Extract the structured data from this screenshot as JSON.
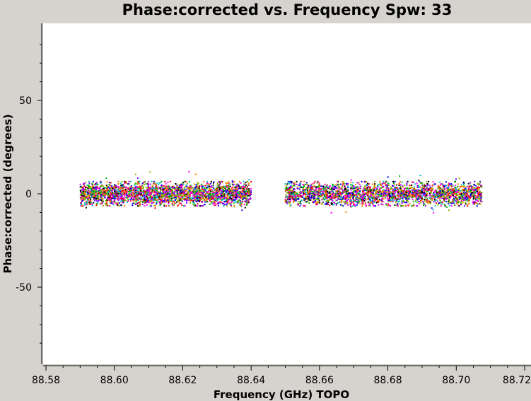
{
  "chart_data": {
    "type": "scatter",
    "title": "Phase:corrected vs. Frequency Spw: 33",
    "xlabel": "Frequency (GHz) TOPO",
    "ylabel": "Phase:corrected (degrees)",
    "xlim": [
      88.58,
      88.72
    ],
    "ylim": [
      -90,
      90
    ],
    "x_ticks": [
      88.58,
      88.6,
      88.62,
      88.64,
      88.66,
      88.68,
      88.7,
      88.72
    ],
    "x_tick_labels": [
      "88.58",
      "88.60",
      "88.62",
      "88.64",
      "88.66",
      "88.68",
      "88.70",
      "88.72"
    ],
    "y_ticks": [
      -50,
      0,
      50
    ],
    "y_tick_labels": [
      "-50",
      "0",
      "50"
    ],
    "grid": false,
    "series": [
      {
        "x_range": [
          88.59,
          88.64
        ],
        "y_center": 0,
        "y_spread": 5,
        "y_extremes": [
          -10,
          12
        ]
      },
      {
        "x_range": [
          88.65,
          88.7075
        ],
        "y_center": 0,
        "y_spread": 5,
        "y_extremes": [
          -11,
          10
        ]
      }
    ],
    "point_colors": [
      "#000000",
      "#ff0000",
      "#00b000",
      "#0000ff",
      "#ff00ff",
      "#00c0c0",
      "#ff8000",
      "#8000ff",
      "#80c000",
      "#a0a000",
      "#ff0080"
    ],
    "background_color": "#ffffff",
    "frame_color": "#d6d3cf"
  }
}
